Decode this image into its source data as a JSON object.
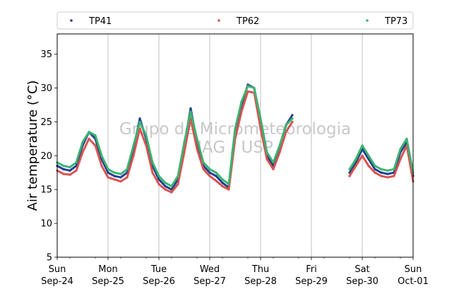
{
  "chart_data": {
    "type": "scatter",
    "title": "",
    "xlabel": "",
    "ylabel": "Air temperature (°C)",
    "ylim": [
      5,
      38
    ],
    "yticks": [
      5,
      10,
      15,
      20,
      25,
      30,
      35
    ],
    "xlim": [
      "2023-09-24T00:00",
      "2023-10-01T00:00"
    ],
    "xticks": [
      {
        "day": "Sun",
        "date": "Sep-24"
      },
      {
        "day": "Mon",
        "date": "Sep-25"
      },
      {
        "day": "Tue",
        "date": "Sep-26"
      },
      {
        "day": "Wed",
        "date": "Sep-27"
      },
      {
        "day": "Thu",
        "date": "Sep-28"
      },
      {
        "day": "Fri",
        "date": "Sep-29"
      },
      {
        "day": "Sat",
        "date": "Sep-30"
      },
      {
        "day": "Sun",
        "date": "Oct-01"
      }
    ],
    "grid": "vertical",
    "legend_position": "top",
    "watermark": [
      "Grupo de Micrometeorologia",
      "IAG / USP"
    ],
    "series": [
      {
        "name": "TP41",
        "color": "#1f3f8f",
        "x": [
          "2023-09-24T00:00",
          "2023-09-24T03:00",
          "2023-09-24T06:00",
          "2023-09-24T09:00",
          "2023-09-24T12:00",
          "2023-09-24T15:00",
          "2023-09-24T18:00",
          "2023-09-24T21:00",
          "2023-09-25T00:00",
          "2023-09-25T03:00",
          "2023-09-25T06:00",
          "2023-09-25T09:00",
          "2023-09-25T12:00",
          "2023-09-25T15:00",
          "2023-09-25T18:00",
          "2023-09-25T21:00",
          "2023-09-26T00:00",
          "2023-09-26T03:00",
          "2023-09-26T06:00",
          "2023-09-26T09:00",
          "2023-09-26T12:00",
          "2023-09-26T15:00",
          "2023-09-26T18:00",
          "2023-09-26T21:00",
          "2023-09-27T00:00",
          "2023-09-27T03:00",
          "2023-09-27T06:00",
          "2023-09-27T09:00",
          "2023-09-27T12:00",
          "2023-09-27T15:00",
          "2023-09-27T18:00",
          "2023-09-27T21:00",
          "2023-09-28T00:00",
          "2023-09-28T03:00",
          "2023-09-28T06:00",
          "2023-09-28T09:00",
          "2023-09-28T12:00",
          "2023-09-28T15:00",
          "2023-09-29T18:00",
          "2023-09-29T21:00",
          "2023-09-30T00:00",
          "2023-09-30T03:00",
          "2023-09-30T06:00",
          "2023-09-30T09:00",
          "2023-09-30T12:00",
          "2023-09-30T15:00",
          "2023-09-30T18:00",
          "2023-09-30T21:00",
          "2023-10-01T00:00"
        ],
        "y": [
          18.5,
          18.0,
          17.8,
          18.5,
          21.5,
          23.5,
          22.5,
          19.5,
          17.5,
          17.0,
          16.8,
          17.5,
          21.0,
          25.5,
          22.5,
          18.5,
          16.5,
          15.5,
          15.0,
          16.5,
          21.5,
          27.0,
          22.0,
          18.5,
          17.5,
          17.0,
          16.0,
          15.3,
          23.5,
          27.5,
          30.5,
          30.0,
          25.0,
          20.0,
          18.5,
          21.0,
          24.5,
          26.0,
          17.5,
          19.0,
          21.0,
          19.5,
          18.0,
          17.5,
          17.3,
          17.5,
          20.5,
          22.0,
          17.0
        ]
      },
      {
        "name": "TP62",
        "color": "#d9534f",
        "x": [
          "2023-09-24T00:00",
          "2023-09-24T03:00",
          "2023-09-24T06:00",
          "2023-09-24T09:00",
          "2023-09-24T12:00",
          "2023-09-24T15:00",
          "2023-09-24T18:00",
          "2023-09-24T21:00",
          "2023-09-25T00:00",
          "2023-09-25T03:00",
          "2023-09-25T06:00",
          "2023-09-25T09:00",
          "2023-09-25T12:00",
          "2023-09-25T15:00",
          "2023-09-25T18:00",
          "2023-09-25T21:00",
          "2023-09-26T00:00",
          "2023-09-26T03:00",
          "2023-09-26T06:00",
          "2023-09-26T09:00",
          "2023-09-26T12:00",
          "2023-09-26T15:00",
          "2023-09-26T18:00",
          "2023-09-26T21:00",
          "2023-09-27T00:00",
          "2023-09-27T03:00",
          "2023-09-27T06:00",
          "2023-09-27T09:00",
          "2023-09-27T12:00",
          "2023-09-27T15:00",
          "2023-09-27T18:00",
          "2023-09-27T21:00",
          "2023-09-28T00:00",
          "2023-09-28T03:00",
          "2023-09-28T06:00",
          "2023-09-28T09:00",
          "2023-09-28T12:00",
          "2023-09-28T15:00",
          "2023-09-29T18:00",
          "2023-09-29T21:00",
          "2023-09-30T00:00",
          "2023-09-30T03:00",
          "2023-09-30T06:00",
          "2023-09-30T09:00",
          "2023-09-30T12:00",
          "2023-09-30T15:00",
          "2023-09-30T18:00",
          "2023-09-30T21:00",
          "2023-10-01T00:00"
        ],
        "y": [
          17.8,
          17.3,
          17.2,
          17.8,
          20.5,
          22.5,
          21.5,
          18.5,
          16.8,
          16.5,
          16.2,
          16.8,
          20.0,
          24.0,
          21.5,
          17.5,
          15.8,
          15.0,
          14.6,
          15.8,
          20.5,
          25.5,
          21.0,
          18.0,
          17.0,
          16.3,
          15.5,
          15.0,
          22.5,
          26.5,
          29.5,
          29.3,
          24.0,
          19.5,
          18.0,
          20.5,
          23.5,
          25.0,
          17.0,
          18.5,
          20.0,
          18.5,
          17.5,
          17.0,
          16.8,
          17.0,
          19.5,
          21.5,
          16.2
        ]
      },
      {
        "name": "TP73",
        "color": "#3cb371",
        "x": [
          "2023-09-24T00:00",
          "2023-09-24T03:00",
          "2023-09-24T06:00",
          "2023-09-24T09:00",
          "2023-09-24T12:00",
          "2023-09-24T15:00",
          "2023-09-24T18:00",
          "2023-09-24T21:00",
          "2023-09-25T00:00",
          "2023-09-25T03:00",
          "2023-09-25T06:00",
          "2023-09-25T09:00",
          "2023-09-25T12:00",
          "2023-09-25T15:00",
          "2023-09-25T18:00",
          "2023-09-25T21:00",
          "2023-09-26T00:00",
          "2023-09-26T03:00",
          "2023-09-26T06:00",
          "2023-09-26T09:00",
          "2023-09-26T12:00",
          "2023-09-26T15:00",
          "2023-09-26T18:00",
          "2023-09-26T21:00",
          "2023-09-27T00:00",
          "2023-09-27T03:00",
          "2023-09-27T06:00",
          "2023-09-27T09:00",
          "2023-09-27T12:00",
          "2023-09-27T15:00",
          "2023-09-27T18:00",
          "2023-09-27T21:00",
          "2023-09-28T00:00",
          "2023-09-28T03:00",
          "2023-09-28T06:00",
          "2023-09-28T09:00",
          "2023-09-28T12:00",
          "2023-09-28T15:00",
          "2023-09-29T18:00",
          "2023-09-29T21:00",
          "2023-09-30T00:00",
          "2023-09-30T03:00",
          "2023-09-30T06:00",
          "2023-09-30T09:00",
          "2023-09-30T12:00",
          "2023-09-30T15:00",
          "2023-09-30T18:00",
          "2023-09-30T21:00",
          "2023-10-01T00:00"
        ],
        "y": [
          19.0,
          18.5,
          18.3,
          19.0,
          22.0,
          23.5,
          23.0,
          20.0,
          18.0,
          17.5,
          17.3,
          18.0,
          21.5,
          25.0,
          23.0,
          19.0,
          17.0,
          16.0,
          15.5,
          17.0,
          22.0,
          26.5,
          22.5,
          19.0,
          18.0,
          17.5,
          16.5,
          15.8,
          24.0,
          28.0,
          30.3,
          30.0,
          25.5,
          20.5,
          19.0,
          21.5,
          24.5,
          25.5,
          18.0,
          19.5,
          21.5,
          20.0,
          18.5,
          18.0,
          17.8,
          18.0,
          21.0,
          22.5,
          17.5
        ]
      }
    ]
  }
}
